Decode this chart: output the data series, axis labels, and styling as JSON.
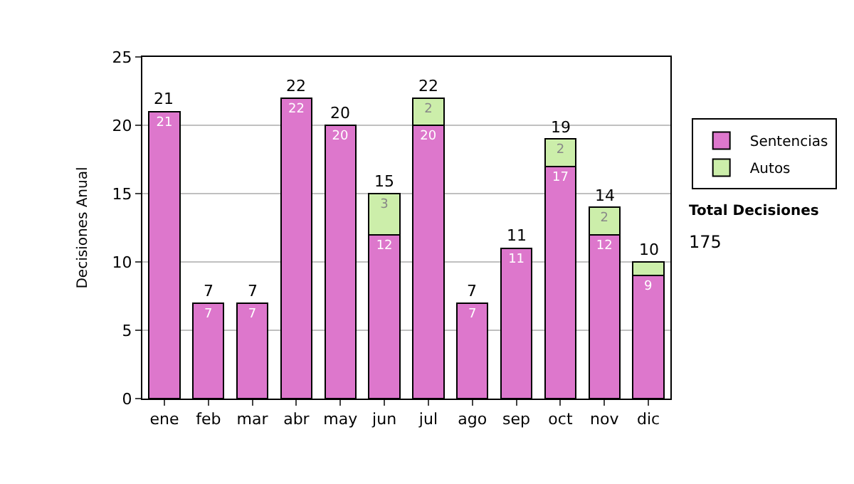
{
  "chart_data": {
    "type": "bar",
    "stacked": true,
    "ylabel": "Decisiones Anual",
    "categories": [
      "ene",
      "feb",
      "mar",
      "abr",
      "may",
      "jun",
      "jul",
      "ago",
      "sep",
      "oct",
      "nov",
      "dic"
    ],
    "series": [
      {
        "name": "Sentencias",
        "color": "#dd77cc",
        "values": [
          21,
          7,
          7,
          22,
          20,
          12,
          20,
          7,
          11,
          17,
          12,
          9
        ],
        "value_labels": [
          "21",
          "7",
          "7",
          "22",
          "20",
          "12",
          "20",
          "7",
          "11",
          "17",
          "12",
          "9"
        ]
      },
      {
        "name": "Autos",
        "color": "#cceeaa",
        "values": [
          null,
          null,
          null,
          null,
          null,
          3,
          2,
          null,
          null,
          2,
          2,
          1
        ],
        "value_labels": [
          null,
          null,
          null,
          null,
          null,
          "3",
          "2",
          null,
          null,
          "2",
          "2",
          null
        ]
      }
    ],
    "totals": [
      "21",
      "7",
      "7",
      "22",
      "20",
      "15",
      "22",
      "7",
      "11",
      "19",
      "14",
      "10"
    ],
    "ylim": [
      0,
      25
    ],
    "yticks": [
      0,
      5,
      10,
      15,
      20,
      25
    ],
    "grid": "y",
    "legend": "right",
    "annotations": [
      "Total Decisiones",
      "175"
    ]
  }
}
